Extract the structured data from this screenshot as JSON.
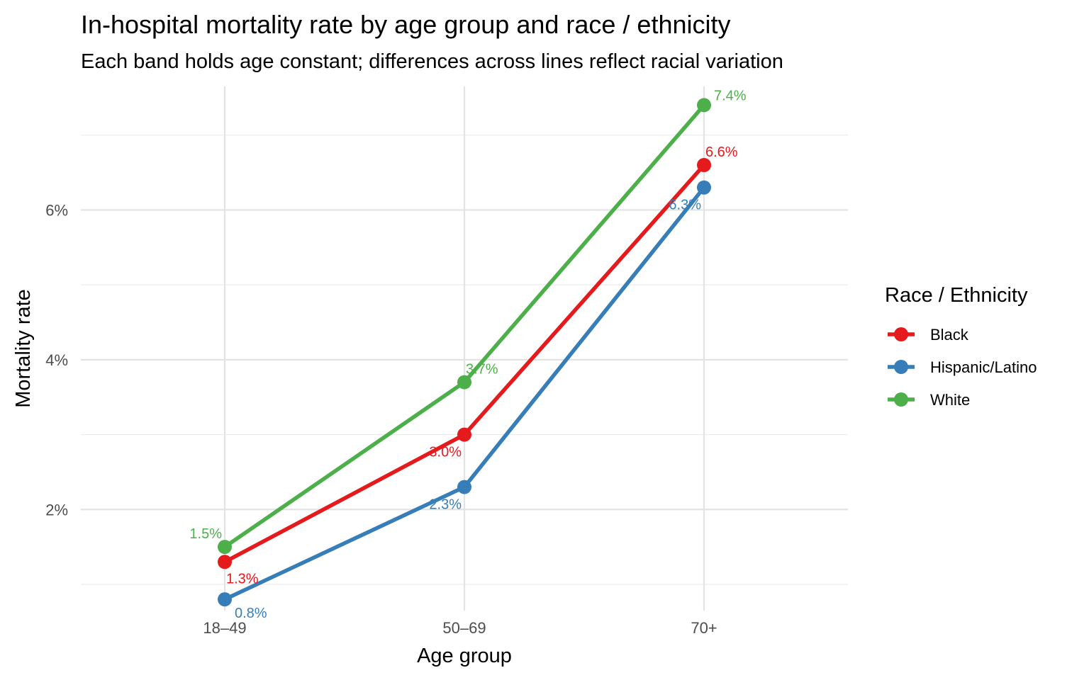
{
  "chart_data": {
    "type": "line",
    "title": "In-hospital mortality rate by age group and race / ethnicity",
    "subtitle": "Each band holds age constant; differences across lines reflect racial variation",
    "xlabel": "Age group",
    "ylabel": "Mortality rate",
    "categories": [
      "18–49",
      "50–69",
      "70+"
    ],
    "y_ticks": [
      2,
      4,
      6
    ],
    "y_tick_labels": [
      "2%",
      "4%",
      "6%"
    ],
    "ylim": [
      0.65,
      7.65
    ],
    "grid": true,
    "legend": {
      "title": "Race / Ethnicity",
      "position": "right"
    },
    "series": [
      {
        "name": "Black",
        "color": "#e41a1c",
        "values": [
          1.3,
          3.0,
          6.6
        ],
        "labels": [
          "1.3%",
          "3.0%",
          "6.6%"
        ]
      },
      {
        "name": "Hispanic/Latino",
        "color": "#377eb8",
        "values": [
          0.8,
          2.3,
          6.3
        ],
        "labels": [
          "0.8%",
          "2.3%",
          "6.3%"
        ]
      },
      {
        "name": "White",
        "color": "#4daf4a",
        "values": [
          1.5,
          3.7,
          7.4
        ],
        "labels": [
          "1.5%",
          "3.7%",
          "7.4%"
        ]
      }
    ]
  }
}
